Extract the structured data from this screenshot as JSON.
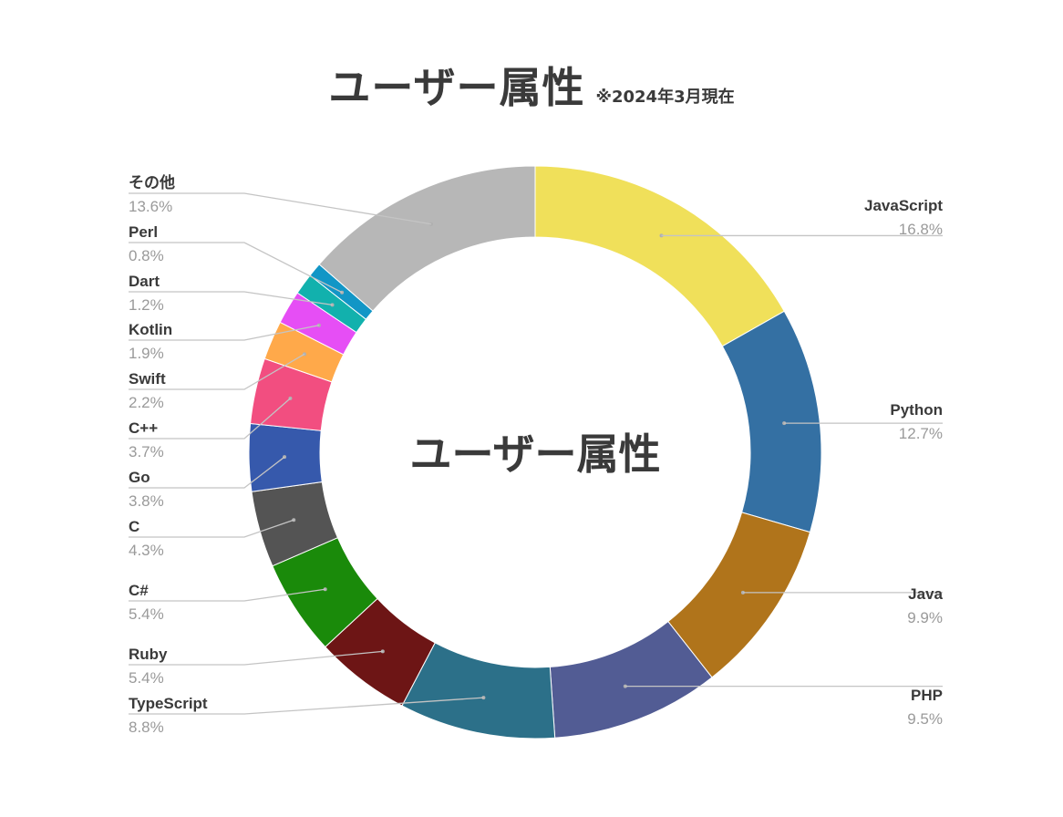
{
  "title": "ユーザー属性",
  "subtitle": "※2024年3月現在",
  "chart_data": {
    "type": "pie",
    "donut": true,
    "center_label": "ユーザー属性",
    "start_angle_deg": 0,
    "direction": "clockwise",
    "slices": [
      {
        "name": "JavaScript",
        "value": 16.8,
        "label": "16.8%",
        "color": "#f0e05a",
        "side": "right"
      },
      {
        "name": "Python",
        "value": 12.7,
        "label": "12.7%",
        "color": "#3470a3",
        "side": "right"
      },
      {
        "name": "Java",
        "value": 9.9,
        "label": "9.9%",
        "color": "#b0741b",
        "side": "right"
      },
      {
        "name": "PHP",
        "value": 9.5,
        "label": "9.5%",
        "color": "#525c94",
        "side": "right"
      },
      {
        "name": "TypeScript",
        "value": 8.8,
        "label": "8.8%",
        "color": "#2c7089",
        "side": "left"
      },
      {
        "name": "Ruby",
        "value": 5.4,
        "label": "5.4%",
        "color": "#6d1515",
        "side": "left"
      },
      {
        "name": "C#",
        "value": 5.4,
        "label": "5.4%",
        "color": "#1a8a0a",
        "side": "left"
      },
      {
        "name": "C",
        "value": 4.3,
        "label": "4.3%",
        "color": "#545454",
        "side": "left"
      },
      {
        "name": "Go",
        "value": 3.8,
        "label": "3.8%",
        "color": "#3659ac",
        "side": "left"
      },
      {
        "name": "C++",
        "value": 3.7,
        "label": "3.7%",
        "color": "#f24e80",
        "side": "left"
      },
      {
        "name": "Swift",
        "value": 2.2,
        "label": "2.2%",
        "color": "#ffa94a",
        "side": "left"
      },
      {
        "name": "Kotlin",
        "value": 1.9,
        "label": "1.9%",
        "color": "#e64ef5",
        "side": "left"
      },
      {
        "name": "Dart",
        "value": 1.2,
        "label": "1.2%",
        "color": "#12b1ad",
        "side": "left"
      },
      {
        "name": "Perl",
        "value": 0.8,
        "label": "0.8%",
        "color": "#1296c6",
        "side": "left"
      },
      {
        "name": "その他",
        "value": 13.6,
        "label": "13.6%",
        "color": "#b7b7b7",
        "side": "left"
      }
    ],
    "legend": "none"
  }
}
